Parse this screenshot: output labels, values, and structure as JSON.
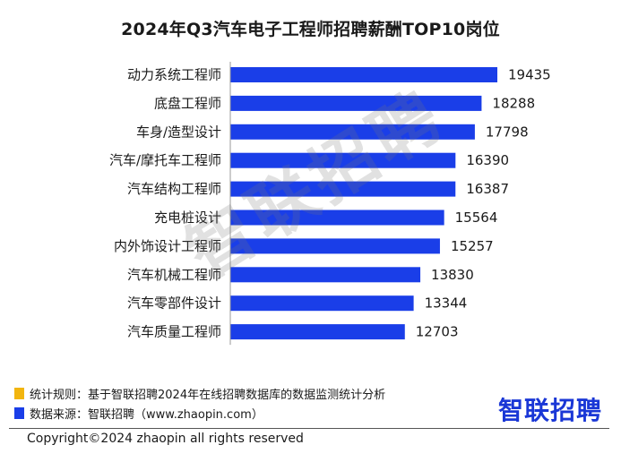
{
  "chart_data": {
    "type": "bar",
    "orientation": "horizontal",
    "title": "2024年Q3汽车电子工程师招聘薪酬TOP10岗位",
    "categories": [
      "动力系统工程师",
      "底盘工程师",
      "车身/造型设计",
      "汽车/摩托车工程师",
      "汽车结构工程师",
      "充电桩设计",
      "内外饰设计工程师",
      "汽车机械工程师",
      "汽车零部件设计",
      "汽车质量工程师"
    ],
    "values": [
      19435,
      18288,
      17798,
      16390,
      16387,
      15564,
      15257,
      13830,
      13344,
      12703
    ],
    "xlim": [
      0,
      21000
    ],
    "bar_color": "#1a3ee8",
    "label_color": "#1a1a1a",
    "grid": false
  },
  "watermark": "智联招聘",
  "notes": [
    {
      "text": "统计规则：基于智联招聘2024年在线招聘数据库的数据监测统计分析",
      "color": "#f2b50f"
    },
    {
      "text": "数据来源：智联招聘（www.zhaopin.com）",
      "color": "#1a3ee8"
    }
  ],
  "logo": "智联招聘",
  "copyright": "Copyright©2024 zhaopin all rights reserved"
}
